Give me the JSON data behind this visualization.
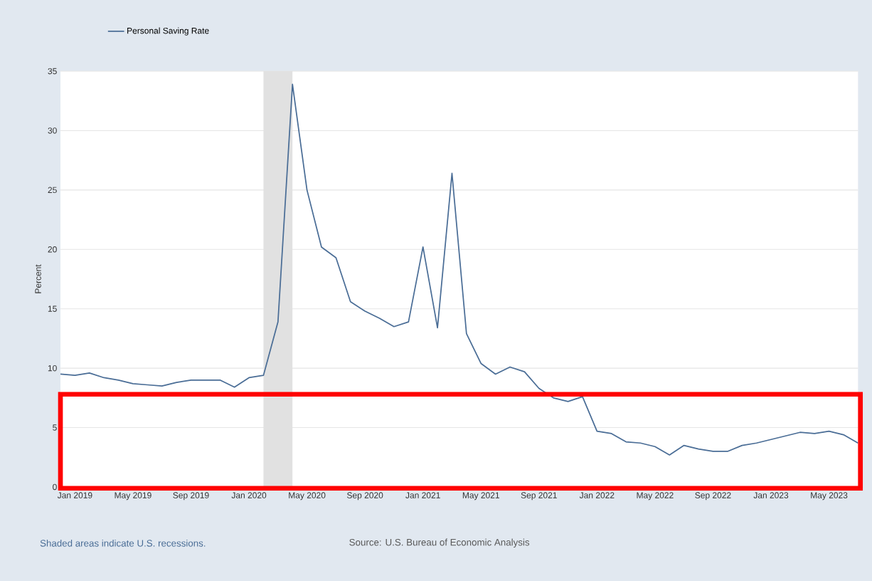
{
  "chart_data": {
    "type": "line",
    "ylabel": "Percent",
    "x": [
      "2018-12",
      "2019-01",
      "2019-02",
      "2019-03",
      "2019-04",
      "2019-05",
      "2019-06",
      "2019-07",
      "2019-08",
      "2019-09",
      "2019-10",
      "2019-11",
      "2019-12",
      "2020-01",
      "2020-02",
      "2020-03",
      "2020-04",
      "2020-05",
      "2020-06",
      "2020-07",
      "2020-08",
      "2020-09",
      "2020-10",
      "2020-11",
      "2020-12",
      "2021-01",
      "2021-02",
      "2021-03",
      "2021-04",
      "2021-05",
      "2021-06",
      "2021-07",
      "2021-08",
      "2021-09",
      "2021-10",
      "2021-11",
      "2021-12",
      "2022-01",
      "2022-02",
      "2022-03",
      "2022-04",
      "2022-05",
      "2022-06",
      "2022-07",
      "2022-08",
      "2022-09",
      "2022-10",
      "2022-11",
      "2022-12",
      "2023-01",
      "2023-02",
      "2023-03",
      "2023-04",
      "2023-05",
      "2023-06",
      "2023-07"
    ],
    "series": [
      {
        "name": "Personal Saving Rate",
        "color": "#4a6d96",
        "values": [
          9.5,
          9.4,
          9.6,
          9.2,
          9.0,
          8.7,
          8.6,
          8.5,
          8.8,
          9.0,
          9.0,
          9.0,
          8.4,
          9.2,
          9.4,
          13.9,
          33.9,
          25.0,
          20.2,
          19.3,
          15.6,
          14.8,
          14.2,
          13.5,
          13.9,
          20.2,
          13.4,
          26.4,
          12.9,
          10.4,
          9.5,
          10.1,
          9.7,
          8.3,
          7.5,
          7.2,
          7.6,
          4.7,
          4.5,
          3.8,
          3.7,
          3.4,
          2.7,
          3.5,
          3.2,
          3.0,
          3.0,
          3.5,
          3.7,
          4.0,
          4.3,
          4.6,
          4.5,
          4.7,
          4.4,
          3.7
        ]
      }
    ],
    "xlim": [
      "2018-12",
      "2023-07"
    ],
    "xticks": [
      {
        "value": "2019-01",
        "label": "Jan 2019"
      },
      {
        "value": "2019-05",
        "label": "May 2019"
      },
      {
        "value": "2019-09",
        "label": "Sep 2019"
      },
      {
        "value": "2020-01",
        "label": "Jan 2020"
      },
      {
        "value": "2020-05",
        "label": "May 2020"
      },
      {
        "value": "2020-09",
        "label": "Sep 2020"
      },
      {
        "value": "2021-01",
        "label": "Jan 2021"
      },
      {
        "value": "2021-05",
        "label": "May 2021"
      },
      {
        "value": "2021-09",
        "label": "Sep 2021"
      },
      {
        "value": "2022-01",
        "label": "Jan 2022"
      },
      {
        "value": "2022-05",
        "label": "May 2022"
      },
      {
        "value": "2022-09",
        "label": "Sep 2022"
      },
      {
        "value": "2023-01",
        "label": "Jan 2023"
      },
      {
        "value": "2023-05",
        "label": "May 2023"
      }
    ],
    "ylim": [
      0,
      35
    ],
    "yticks": [
      0,
      5,
      10,
      15,
      20,
      25,
      30,
      35
    ],
    "grid": "y",
    "legend": "top left",
    "bands": [
      {
        "axis": "x",
        "from": "2020-02",
        "to": "2020-04",
        "color": "#e1e1e1"
      }
    ],
    "annotations": [
      "Shaded areas indicate U.S. recessions.",
      "Source: U.S. Bureau of Economic Analysis"
    ]
  }
}
